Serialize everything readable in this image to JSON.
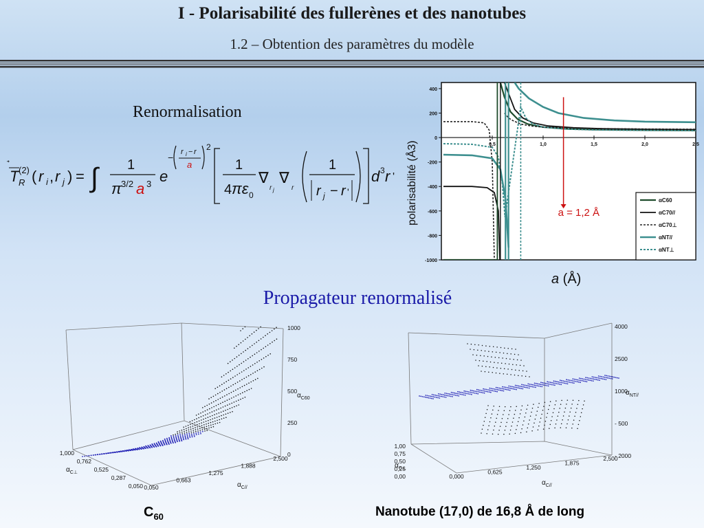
{
  "header": {
    "title": "I  - Polarisabilité des fullerènes et des nanotubes",
    "subtitle": "1.2 – Obtention des paramètres du modèle"
  },
  "renormalisation_label": "Renormalisation",
  "propagator_label": "Propagateur renormalisé",
  "captions": {
    "c60_base": "C",
    "c60_sub": "60",
    "nanotube": "Nanotube (17,0) de 16,8 Å de long"
  },
  "colors": {
    "accent": "#1a1aa8",
    "arrow": "#cc1111",
    "teal": "#3d8f8f",
    "dark": "#1a1a1a"
  },
  "chart_data": [
    {
      "type": "line",
      "ylabel": "polarisabilité (Å3)",
      "xlabel": "a (Å)",
      "xlim": [
        0,
        2.5
      ],
      "ylim": [
        -1000,
        450
      ],
      "xticks": [
        "0,0",
        "0,5",
        "1,0",
        "1,5",
        "2,0",
        "2,5"
      ],
      "yticks": [
        "400",
        "200",
        "0",
        "-200",
        "-400",
        "-600",
        "-800",
        "-1000"
      ],
      "annotation": "a = 1,2 Å",
      "legend": "bottom-right",
      "series": [
        {
          "name": "αC60",
          "x": [
            0.02,
            0.3,
            0.45,
            0.5,
            0.53,
            0.545,
            0.58,
            0.62,
            0.68,
            0.75,
            0.85,
            1.0,
            1.25,
            1.5,
            2.0,
            2.5
          ],
          "y": [
            -1000,
            -1000,
            -1000,
            -1000,
            -1000,
            -1000,
            450,
            330,
            210,
            150,
            110,
            85,
            70,
            65,
            60,
            58
          ]
        },
        {
          "name": "αC70//",
          "x": [
            0.02,
            0.3,
            0.45,
            0.52,
            0.56,
            0.575,
            0.62,
            0.66,
            0.72,
            0.8,
            0.9,
            1.05,
            1.3,
            1.6,
            2.0,
            2.5
          ],
          "y": [
            -400,
            -400,
            -410,
            -450,
            -600,
            -1000,
            450,
            360,
            230,
            160,
            120,
            95,
            80,
            72,
            68,
            65
          ]
        },
        {
          "name": "αC70⊥",
          "x": [
            0.02,
            0.3,
            0.42,
            0.47,
            0.5,
            0.52,
            0.62,
            0.66,
            0.7,
            0.78,
            0.88,
            1.0,
            1.25,
            1.5,
            2.0,
            2.5
          ],
          "y": [
            130,
            130,
            120,
            60,
            -200,
            -1000,
            200,
            160,
            140,
            110,
            95,
            85,
            78,
            74,
            70,
            68
          ]
        },
        {
          "name": "αNT//",
          "x": [
            0.02,
            0.3,
            0.5,
            0.58,
            0.63,
            0.66,
            0.72,
            0.76,
            0.86,
            1.0,
            1.15,
            1.4,
            1.7,
            2.0,
            2.5
          ],
          "y": [
            -140,
            -145,
            -170,
            -260,
            -500,
            -900,
            450,
            400,
            320,
            250,
            200,
            160,
            140,
            130,
            125
          ]
        },
        {
          "name": "αNT⊥",
          "x": [
            0.02,
            0.3,
            0.5,
            0.56,
            0.6,
            0.625,
            0.78,
            0.83,
            0.9,
            1.0,
            1.2,
            1.5,
            2.0,
            2.5
          ],
          "y": [
            -50,
            -55,
            -80,
            -160,
            -380,
            -650,
            250,
            160,
            110,
            85,
            70,
            62,
            58,
            56
          ]
        }
      ]
    },
    {
      "type": "scatter",
      "caption": "C60",
      "zlabel": "αC60",
      "zticks": [
        "0",
        "250",
        "500",
        "750",
        "1000"
      ],
      "xlabel": "αC//",
      "xticks": [
        "0,050",
        "0,663",
        "1,275",
        "1,888",
        "2,500"
      ],
      "ylabel": "αC⊥",
      "yticks": [
        "0,050",
        "0,287",
        "0,525",
        "0,762",
        "1,000"
      ]
    },
    {
      "type": "scatter",
      "caption": "Nanotube (17,0) de 16,8 Å de long",
      "zlabel": "αNT//",
      "zticks": [
        "- 2000",
        "- 500",
        "1000",
        "2500",
        "4000"
      ],
      "xlabel": "αC//",
      "xticks": [
        "0,000",
        "0,625",
        "1,250",
        "1,875",
        "2,500"
      ],
      "ylabel": "αC⊥",
      "yticks": [
        "0,00",
        "0,25",
        "0,50",
        "0,75",
        "1,00"
      ]
    }
  ]
}
